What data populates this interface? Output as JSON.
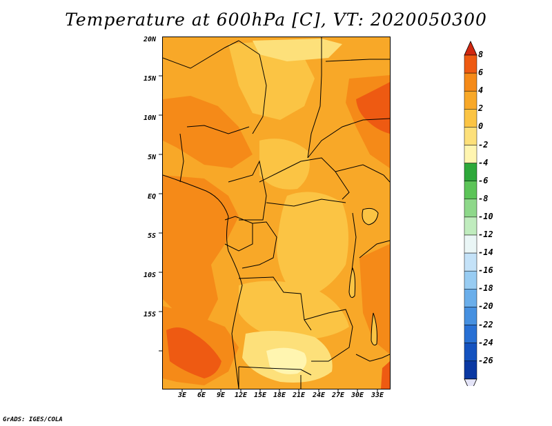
{
  "title": "Temperature at 600hPa [C], VT: 2020050300",
  "credit": "GrADS: IGES/COLA",
  "latitude_labels": [
    "20N",
    "15N",
    "10N",
    "5N",
    "EQ",
    "5S",
    "10S",
    "15S"
  ],
  "longitude_labels": [
    "3E",
    "6E",
    "9E",
    "12E",
    "15E",
    "18E",
    "21E",
    "24E",
    "27E",
    "30E",
    "33E"
  ],
  "colorbar": {
    "labels": [
      "8",
      "6",
      "4",
      "2",
      "0",
      "-2",
      "-4",
      "-6",
      "-8",
      "-10",
      "-12",
      "-14",
      "-16",
      "-18",
      "-20",
      "-22",
      "-24",
      "-26"
    ],
    "colors": [
      "#e03a0a",
      "#ee5a12",
      "#f58a18",
      "#f8a828",
      "#fbc444",
      "#fde07a",
      "#fff5b0",
      "#2ea83a",
      "#5cc458",
      "#8ed88a",
      "#c0ecbe",
      "#eaf6f6",
      "#c4e2f8",
      "#98ccf2",
      "#6aaeea",
      "#4690e0",
      "#2870d4",
      "#1452bf",
      "#0a38a2"
    ],
    "under_color": "#e4e4f8",
    "over_color": "#d02810"
  },
  "map_colors": {
    "base": "#f8a828",
    "warm": "#f58a18",
    "hot": "#ee5a12",
    "cool": "#fbc444",
    "cooler": "#fde07a",
    "coolest": "#fff5b0",
    "border": "#000000"
  }
}
